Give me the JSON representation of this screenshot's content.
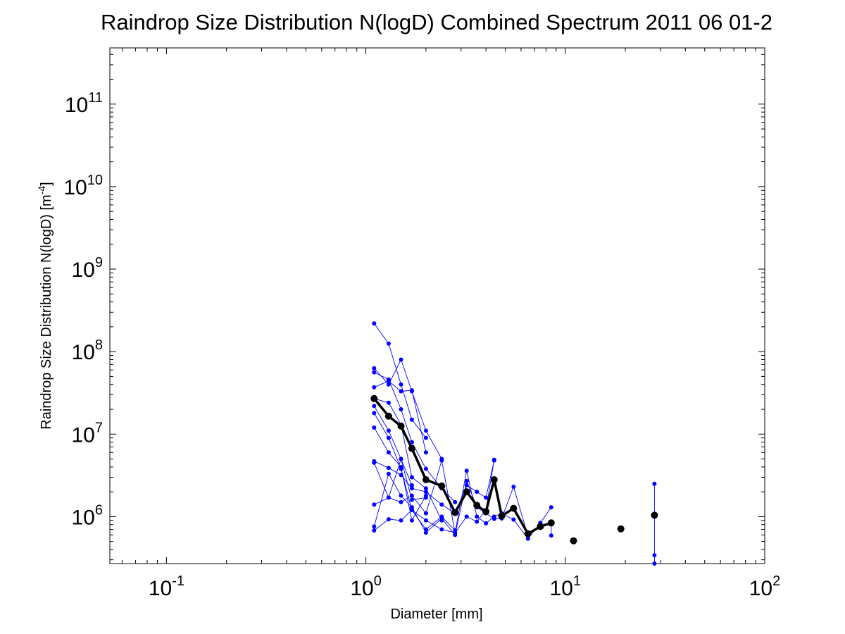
{
  "chart_data": {
    "type": "scatter",
    "title": "Raindrop Size Distribution N(logD) Combined Spectrum 2011 06 01-2",
    "xlabel": "Diameter [mm]",
    "ylabel": {
      "prefix": "Raindrop Size Distribution N(logD) [m",
      "exponent": "-4",
      "suffix": "]"
    },
    "xscale": "log",
    "yscale": "log",
    "xlim": [
      0.052,
      100
    ],
    "ylim": [
      270000,
      480000000000
    ],
    "xticks": [
      {
        "value": 0.1,
        "base": "10",
        "exponent": "-1"
      },
      {
        "value": 1,
        "base": "10",
        "exponent": "0"
      },
      {
        "value": 10,
        "base": "10",
        "exponent": "1"
      },
      {
        "value": 100,
        "base": "10",
        "exponent": "2"
      }
    ],
    "yticks": [
      {
        "value": 1000000,
        "base": "10",
        "exponent": "6"
      },
      {
        "value": 10000000,
        "base": "10",
        "exponent": "7"
      },
      {
        "value": 100000000,
        "base": "10",
        "exponent": "8"
      },
      {
        "value": 1000000000,
        "base": "10",
        "exponent": "9"
      },
      {
        "value": 10000000000,
        "base": "10",
        "exponent": "10"
      },
      {
        "value": 100000000000,
        "base": "10",
        "exponent": "11"
      }
    ],
    "grid": false,
    "legend": "none",
    "colors": {
      "individual": "#0000ff",
      "combined": "#000000"
    },
    "series": [
      {
        "style": "individual",
        "x": [
          1.1,
          1.3,
          1.5,
          1.7,
          2.0
        ],
        "y": [
          220000000,
          125000000,
          40000000,
          15000000,
          9000000
        ]
      },
      {
        "style": "individual",
        "x": [
          1.1,
          1.3,
          1.5,
          1.7,
          2.0,
          2.4
        ],
        "y": [
          63000000,
          40000000,
          80000000,
          33000000,
          11000000,
          5000000
        ]
      },
      {
        "style": "individual",
        "x": [
          1.1,
          1.3,
          1.5,
          1.7,
          2.0,
          2.4,
          2.8
        ],
        "y": [
          56000000,
          46000000,
          20000000,
          8000000,
          3800000,
          2200000,
          1500000
        ]
      },
      {
        "style": "individual",
        "x": [
          1.1,
          1.3,
          1.5,
          1.7,
          2.0
        ],
        "y": [
          37000000,
          44000000,
          33000000,
          34000000,
          6000000
        ]
      },
      {
        "style": "individual",
        "x": [
          1.1,
          1.3,
          1.5,
          1.7,
          2.0,
          2.4
        ],
        "y": [
          27000000,
          24000000,
          13000000,
          3000000,
          2200000,
          900000
        ]
      },
      {
        "style": "individual",
        "x": [
          1.1,
          1.3,
          1.5,
          1.7
        ],
        "y": [
          22000000,
          11000000,
          5000000,
          2400000
        ]
      },
      {
        "style": "individual",
        "x": [
          1.1,
          1.3,
          1.5,
          1.7,
          2.0,
          2.4,
          2.8
        ],
        "y": [
          18000000,
          9000000,
          3800000,
          1200000,
          700000,
          1000000,
          680000
        ]
      },
      {
        "style": "individual",
        "x": [
          1.1,
          1.3,
          1.5,
          1.7,
          2.0
        ],
        "y": [
          12000000,
          6000000,
          4000000,
          900000,
          1800000
        ]
      },
      {
        "style": "individual",
        "x": [
          1.1,
          1.3,
          1.5,
          1.7,
          2.0,
          2.4,
          2.8,
          3.2,
          3.6,
          4.0,
          4.4
        ],
        "y": [
          4700000,
          3900000,
          3200000,
          2200000,
          2000000,
          1400000,
          1100000,
          2400000,
          2000000,
          1700000,
          4800000
        ]
      },
      {
        "style": "individual",
        "x": [
          1.1,
          1.3,
          1.5,
          1.7,
          2.0,
          2.4,
          2.8,
          3.2,
          3.6,
          4.0,
          4.4,
          4.8,
          5.5,
          6.5,
          7.5,
          8.5
        ],
        "y": [
          1400000,
          1700000,
          1500000,
          1800000,
          1100000,
          4800000,
          640000,
          3600000,
          1000000,
          830000,
          1000000,
          1100000,
          920000,
          540000,
          840000,
          1300000
        ]
      },
      {
        "style": "individual",
        "x": [
          1.1,
          1.3,
          1.5,
          1.7,
          2.0,
          2.4,
          2.8,
          3.2,
          3.6,
          4.0,
          4.4,
          4.8,
          5.5,
          6.5
        ],
        "y": [
          760000,
          3300000,
          1800000,
          1300000,
          640000,
          950000,
          600000,
          2700000,
          1300000,
          1100000,
          940000,
          950000,
          2300000,
          580000
        ]
      },
      {
        "style": "individual",
        "x": [
          1.1,
          1.3,
          1.5,
          1.7,
          2.0,
          2.4,
          2.8,
          3.2,
          3.6,
          4.0,
          4.4
        ],
        "y": [
          680000,
          930000,
          900000,
          1200000,
          900000,
          700000,
          640000,
          1000000,
          870000,
          1200000,
          4900000
        ]
      },
      {
        "style": "individual",
        "x": [
          1.1,
          1.3,
          1.5,
          1.7,
          2.0
        ],
        "y": [
          4500000,
          1700000,
          5000000,
          1600000,
          1700000
        ]
      },
      {
        "style": "individual",
        "x": [
          8.5,
          8.5
        ],
        "y": [
          590000,
          820000
        ]
      },
      {
        "style": "individual",
        "x": [
          28,
          28,
          28
        ],
        "y": [
          2500000,
          340000,
          270000
        ]
      },
      {
        "style": "combined",
        "name": "",
        "x": [
          1.1,
          1.3,
          1.5,
          1.7,
          2.0,
          2.4,
          2.8,
          3.2,
          3.6,
          4.0,
          4.4,
          4.8,
          5.5,
          6.5,
          7.5,
          8.5,
          11,
          19,
          28
        ],
        "y": [
          27000000,
          16500000,
          12500000,
          6700000,
          2800000,
          2350000,
          1120000,
          2000000,
          1370000,
          1150000,
          2800000,
          1020000,
          1260000,
          620000,
          760000,
          840000,
          510000,
          710000,
          1040000
        ],
        "connected_through_index": 15
      }
    ]
  }
}
